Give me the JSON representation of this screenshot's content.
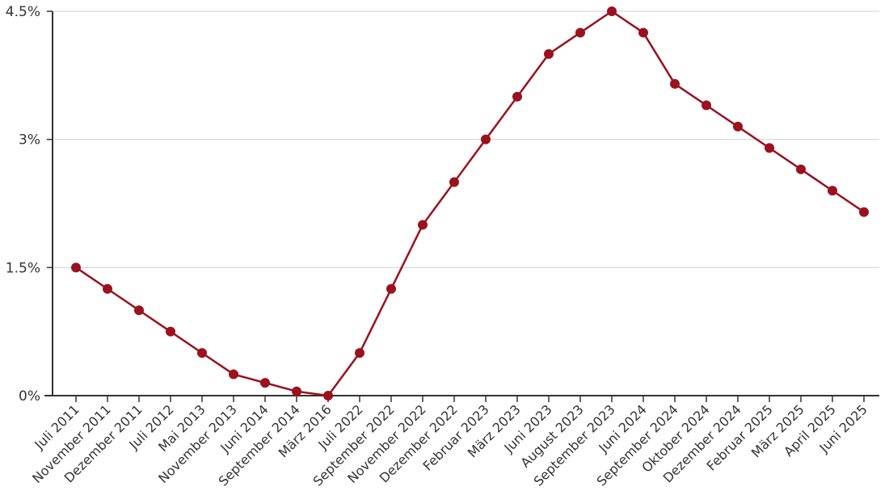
{
  "chart_data": {
    "type": "line",
    "title": "",
    "xlabel": "",
    "ylabel": "",
    "ylim": [
      0,
      4.5
    ],
    "yticks": [
      "0%",
      "1.5%",
      "3%",
      "4.5%"
    ],
    "ytick_values": [
      0,
      1.5,
      3,
      4.5
    ],
    "grid": true,
    "categories": [
      "Juli 2011",
      "November 2011",
      "Dezember 2011",
      "Juli 2012",
      "Mai 2013",
      "November 2013",
      "Juni 2014",
      "September 2014",
      "März 2016",
      "Juli 2022",
      "September 2022",
      "November 2022",
      "Dezember 2022",
      "Februar 2023",
      "März 2023",
      "Juni 2023",
      "August 2023",
      "September 2023",
      "Juni 2024",
      "September 2024",
      "Oktober 2024",
      "Dezember 2024",
      "Februar 2025",
      "März 2025",
      "April 2025",
      "Juni 2025"
    ],
    "series": [
      {
        "values": [
          1.5,
          1.25,
          1.0,
          0.75,
          0.5,
          0.25,
          0.15,
          0.05,
          0.0,
          0.5,
          1.25,
          2.0,
          2.5,
          3.0,
          3.5,
          4.0,
          4.25,
          4.5,
          4.25,
          3.65,
          3.4,
          3.15,
          2.9,
          2.65,
          2.4,
          2.15
        ],
        "color": "#9b111e"
      }
    ]
  }
}
